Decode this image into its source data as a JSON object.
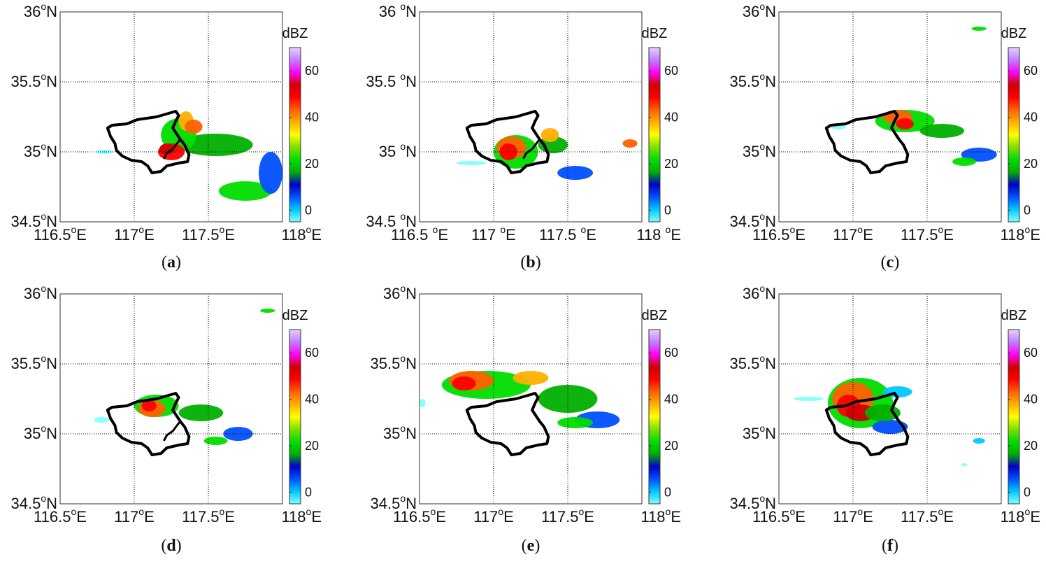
{
  "figure": {
    "colorbar": {
      "unit": "dBZ",
      "ticks": [
        "60",
        "40",
        "20",
        "0"
      ],
      "range": [
        -5,
        70
      ],
      "colors": [
        "#80ffff",
        "#00c8ff",
        "#0050ff",
        "#0000c8",
        "#00b000",
        "#00dd00",
        "#80e000",
        "#ffff00",
        "#ffb000",
        "#ff6000",
        "#ff0000",
        "#d00000",
        "#ff00ff",
        "#c080ff",
        "#e8d0ff"
      ]
    },
    "panels": [
      {
        "id": "a",
        "caption": "a",
        "lat_labels": [
          "36",
          "35.5",
          "35",
          "34.5"
        ],
        "lat_suffix": "N",
        "lat_sep": "",
        "lon_labels": [
          "116.5",
          "117",
          "117.5",
          "118"
        ],
        "lon_suffix": "E",
        "lon_sep": ""
      },
      {
        "id": "b",
        "caption": "b",
        "lat_labels": [
          "36",
          "35.5",
          "35",
          "34.5"
        ],
        "lat_suffix": "N",
        "lat_sep": " ",
        "lon_labels": [
          "116.5",
          "117",
          "117.5",
          "118"
        ],
        "lon_suffix": "E",
        "lon_sep": " "
      },
      {
        "id": "c",
        "caption": "c",
        "lat_labels": [
          "36",
          "35.5",
          "35",
          "34.5"
        ],
        "lat_suffix": "N",
        "lat_sep": "",
        "lon_labels": [
          "116.5",
          "117",
          "117.5",
          "118"
        ],
        "lon_suffix": "E",
        "lon_sep": ""
      },
      {
        "id": "d",
        "caption": "d",
        "lat_labels": [
          "36",
          "35.5",
          "35",
          "34.5"
        ],
        "lat_suffix": "N",
        "lat_sep": "",
        "lon_labels": [
          "116.5",
          "117",
          "117.5",
          "118"
        ],
        "lon_suffix": "E",
        "lon_sep": ""
      },
      {
        "id": "e",
        "caption": "e",
        "lat_labels": [
          "36",
          "35.5",
          "35",
          "34.5"
        ],
        "lat_suffix": "N",
        "lat_sep": "",
        "lon_labels": [
          "116.5",
          "117",
          "117.5",
          "118"
        ],
        "lon_suffix": "E",
        "lon_sep": ""
      },
      {
        "id": "f",
        "caption": "f",
        "lat_labels": [
          "36",
          "35.5",
          "35",
          "34.5"
        ],
        "lat_suffix": "N",
        "lat_sep": "",
        "lon_labels": [
          "116.5",
          "117",
          "117.5",
          "118"
        ],
        "lon_suffix": "E",
        "lon_sep": ""
      }
    ]
  }
}
